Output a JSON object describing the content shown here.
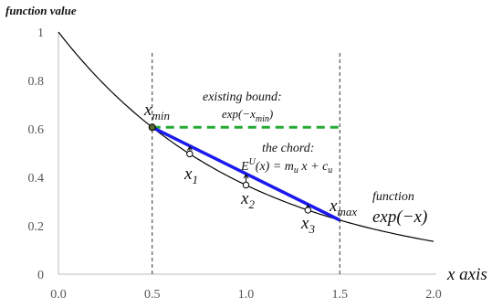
{
  "chart_data": {
    "type": "line",
    "ylabel": "function value",
    "xlabel": "x axis",
    "xlim": [
      0,
      2
    ],
    "ylim": [
      0,
      1
    ],
    "x_ticks": [
      "0.0",
      "0.5",
      "1.0",
      "1.5",
      "2.0"
    ],
    "y_ticks": [
      "0",
      "0.2",
      "0.4",
      "0.6",
      "0.8",
      "1"
    ],
    "series": [
      {
        "name": "function exp(−x)",
        "function": "exp(-x)",
        "x_range": [
          0,
          2
        ],
        "color": "#000000"
      },
      {
        "name": "the chord",
        "x": [
          0.5,
          1.5
        ],
        "y": [
          0.6065,
          0.2231
        ],
        "color": "#1a1aee"
      },
      {
        "name": "existing bound",
        "x": [
          0.5,
          1.5
        ],
        "y": [
          0.6065,
          0.6065
        ],
        "color": "#22aa33",
        "dashed": true
      }
    ],
    "vlines": [
      0.5,
      1.5
    ],
    "sample_points": [
      {
        "name": "x1",
        "x": 0.7,
        "y": 0.4966
      },
      {
        "name": "x2",
        "x": 1.0,
        "y": 0.3679
      },
      {
        "name": "x3",
        "x": 1.33,
        "y": 0.2645
      }
    ],
    "xmin_point": {
      "x": 0.5,
      "y": 0.6065
    },
    "labels": {
      "xmin": {
        "main": "x",
        "sub": "min"
      },
      "xmax": {
        "main": "x",
        "sub": "max"
      },
      "x1": {
        "main": "x",
        "sub": "1"
      },
      "x2": {
        "main": "x",
        "sub": "2"
      },
      "x3": {
        "main": "x",
        "sub": "3"
      },
      "bound_title": "existing bound:",
      "bound_expr_pre": "exp(−x",
      "bound_expr_sub": "min",
      "bound_expr_post": ")",
      "chord_title": "the chord:",
      "chord_E": "E",
      "chord_sup": "U",
      "chord_rest_1": "(x) = m",
      "chord_sub_1": "u",
      "chord_rest_2": " x + c",
      "chord_sub_2": "u",
      "function_word": "function",
      "function_expr": "exp(−x)"
    }
  }
}
